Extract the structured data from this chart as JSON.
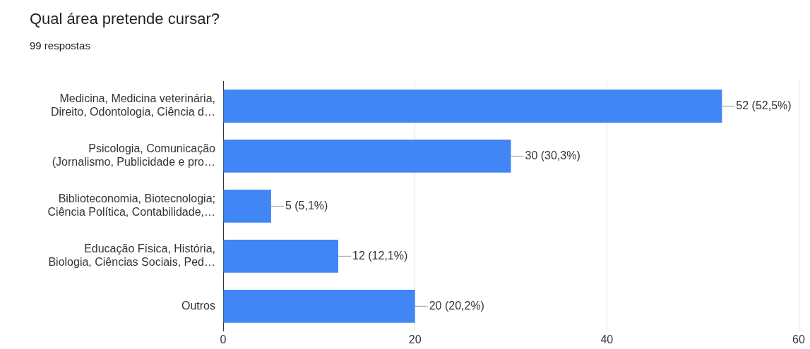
{
  "chart_data": {
    "type": "bar",
    "title": "Qual área pretende cursar?",
    "subtitle": "99 respostas",
    "orientation": "horizontal",
    "categories": [
      "Medicina, Medicina veterinária,\nDireito, Odontologia, Ciência d…",
      "Psicologia, Comunicação\n(Jornalismo, Publicidade e pro…",
      "Biblioteconomia, Biotecnologia;\nCiência Política, Contabilidade,…",
      "Educação Física, História,\nBiologia, Ciências Sociais, Ped…",
      "Outros"
    ],
    "values": [
      52,
      30,
      5,
      12,
      20
    ],
    "value_labels": [
      "52 (52,5%)",
      "30 (30,3%)",
      "5 (5,1%)",
      "12 (12,1%)",
      "20 (20,2%)"
    ],
    "color": "#4285f4",
    "xlim": [
      0,
      60
    ],
    "xticks": [
      0,
      20,
      40,
      60
    ],
    "grid": "x",
    "legend": false
  }
}
